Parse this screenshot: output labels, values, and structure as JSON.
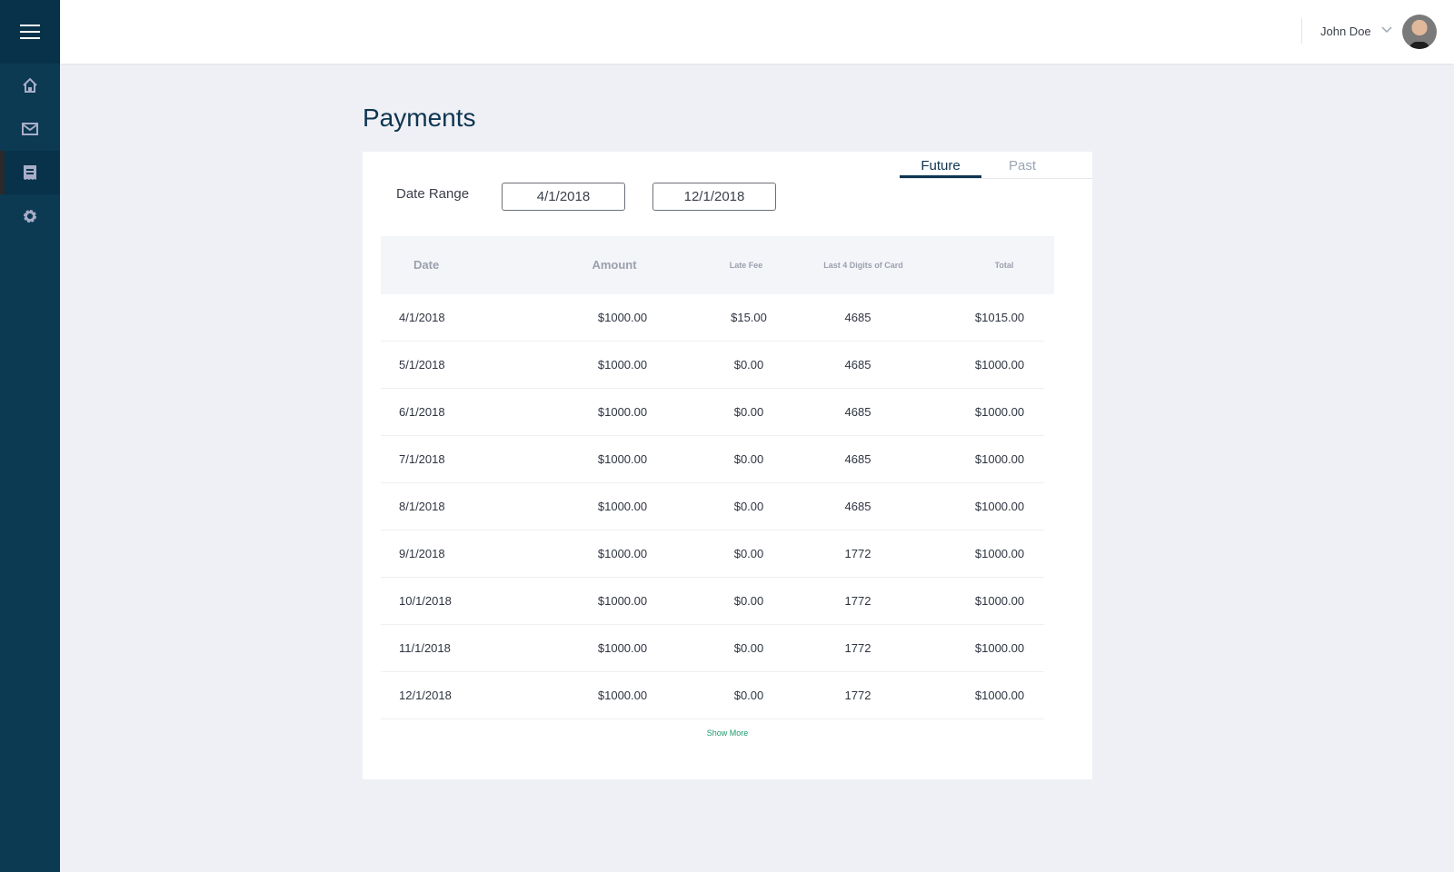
{
  "sidebar": {
    "items": [
      {
        "icon": "home-icon"
      },
      {
        "icon": "mail-icon"
      },
      {
        "icon": "receipt-icon",
        "active": true
      },
      {
        "icon": "gear-icon"
      }
    ]
  },
  "header": {
    "user_name": "John Doe"
  },
  "page": {
    "title": "Payments"
  },
  "tabs": [
    {
      "label": "Future",
      "active": true
    },
    {
      "label": "Past"
    }
  ],
  "filters": {
    "date_range_label": "Date Range",
    "start": "4/1/2018",
    "end": "12/1/2018"
  },
  "table": {
    "columns": [
      "Date",
      "Amount",
      "Late Fee",
      "Last 4 Digits of Card",
      "Total"
    ],
    "rows": [
      [
        "4/1/2018",
        "$1000.00",
        "$15.00",
        "4685",
        "$1015.00"
      ],
      [
        "5/1/2018",
        "$1000.00",
        "$0.00",
        "4685",
        "$1000.00"
      ],
      [
        "6/1/2018",
        "$1000.00",
        "$0.00",
        "4685",
        "$1000.00"
      ],
      [
        "7/1/2018",
        "$1000.00",
        "$0.00",
        "4685",
        "$1000.00"
      ],
      [
        "8/1/2018",
        "$1000.00",
        "$0.00",
        "4685",
        "$1000.00"
      ],
      [
        "9/1/2018",
        "$1000.00",
        "$0.00",
        "1772",
        "$1000.00"
      ],
      [
        "10/1/2018",
        "$1000.00",
        "$0.00",
        "1772",
        "$1000.00"
      ],
      [
        "11/1/2018",
        "$1000.00",
        "$0.00",
        "1772",
        "$1000.00"
      ],
      [
        "12/1/2018",
        "$1000.00",
        "$0.00",
        "1772",
        "$1000.00"
      ]
    ],
    "show_more": "Show More"
  },
  "colors": {
    "sidebar": "#0b3a52",
    "accent": "#0d3550",
    "link": "#1a9a6a"
  }
}
